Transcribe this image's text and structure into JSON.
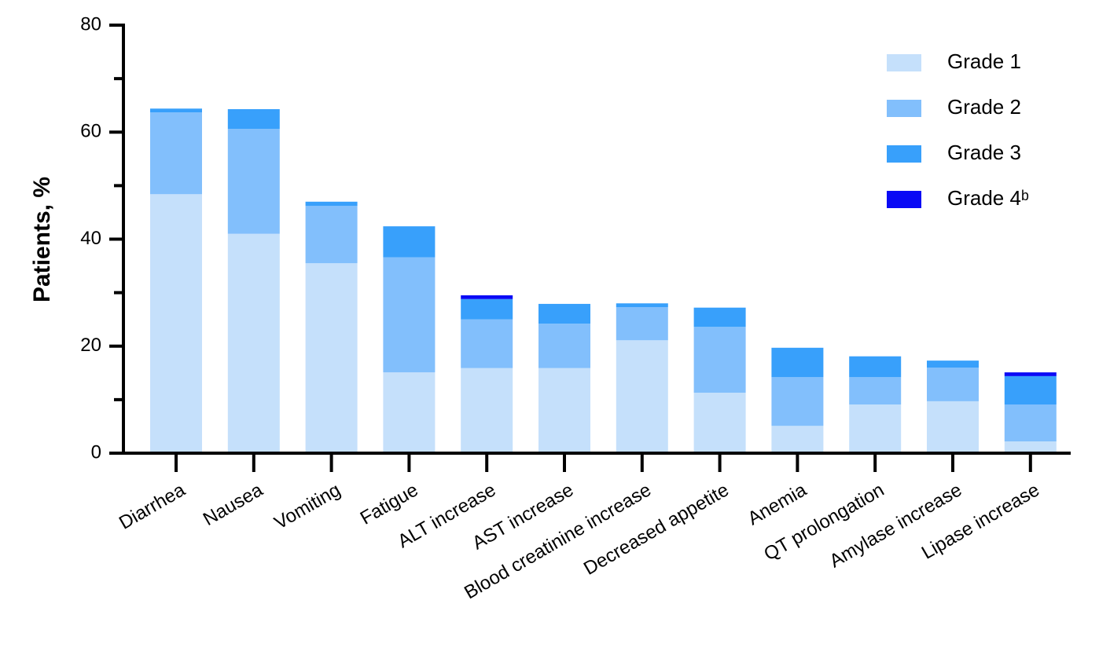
{
  "chart_data": {
    "type": "stacked_bar",
    "y_label": "Patients, %",
    "categories": [
      "Diarrhea",
      "Nausea",
      "Vomiting",
      "Fatigue",
      "ALT increase",
      "AST increase",
      "Blood creatinine increase",
      "Decreased appetite",
      "Anemia",
      "QT prolongation",
      "Amylase increase",
      "Lipase increase"
    ],
    "series": [
      {
        "name": "Grade 1",
        "color": "#c5e0fb",
        "values": [
          48.4,
          41.0,
          35.5,
          15.1,
          15.9,
          15.9,
          21.1,
          11.3,
          5.1,
          9.1,
          9.7,
          2.2
        ]
      },
      {
        "name": "Grade 2",
        "color": "#82bffc",
        "values": [
          15.3,
          19.6,
          10.7,
          21.5,
          9.1,
          8.3,
          6.2,
          12.3,
          9.1,
          5.1,
          6.3,
          6.9
        ]
      },
      {
        "name": "Grade 3",
        "color": "#38a0fb",
        "values": [
          0.7,
          3.7,
          0.8,
          5.8,
          3.8,
          3.7,
          0.7,
          3.6,
          5.5,
          3.9,
          1.3,
          5.3
        ]
      },
      {
        "name": "Grade 4ᵇ",
        "color": "#0a0af5",
        "values": [
          0,
          0,
          0,
          0,
          0.7,
          0,
          0,
          0,
          0,
          0,
          0,
          0.7
        ]
      }
    ],
    "ylim": [
      0,
      80
    ],
    "yticks": [
      0,
      20,
      40,
      60,
      80
    ],
    "yminorticks": [
      10,
      30,
      50,
      70
    ],
    "grid": false,
    "legend": "top-right"
  }
}
